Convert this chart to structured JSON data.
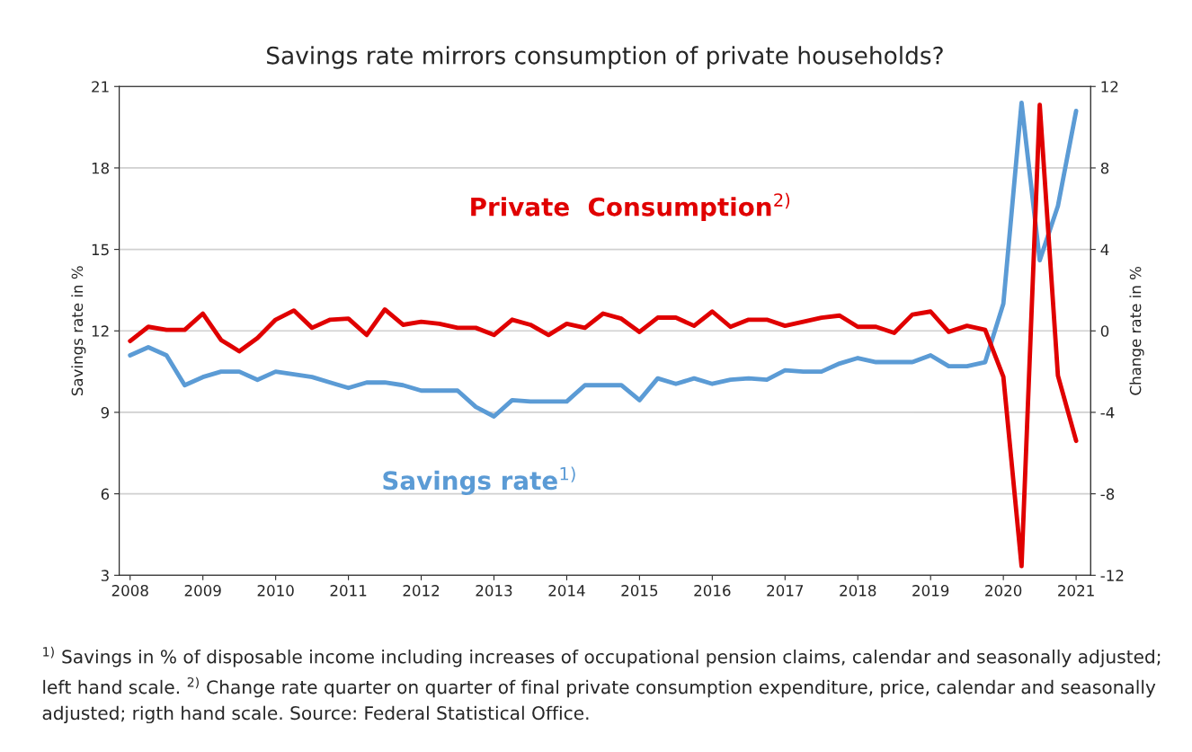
{
  "chart_data": {
    "type": "line",
    "title": "Savings rate mirrors consumption of private households?",
    "ylabel": "Savings rate in %",
    "y2label": "Change rate in %",
    "x": [
      2008,
      2008.25,
      2008.5,
      2008.75,
      2009,
      2009.25,
      2009.5,
      2009.75,
      2010,
      2010.25,
      2010.5,
      2010.75,
      2011,
      2011.25,
      2011.5,
      2011.75,
      2012,
      2012.25,
      2012.5,
      2012.75,
      2013,
      2013.25,
      2013.5,
      2013.75,
      2014,
      2014.25,
      2014.5,
      2014.75,
      2015,
      2015.25,
      2015.5,
      2015.75,
      2016,
      2016.25,
      2016.5,
      2016.75,
      2017,
      2017.25,
      2017.5,
      2017.75,
      2018,
      2018.25,
      2018.5,
      2018.75,
      2019,
      2019.25,
      2019.5,
      2019.75,
      2020,
      2020.25,
      2020.5,
      2020.75,
      2021
    ],
    "series": [
      {
        "name": "Savings rate$^{1)}$",
        "color": "#5b9bd5",
        "axis": "y",
        "values": [
          11.1,
          11.4,
          11.1,
          10.0,
          10.3,
          10.5,
          10.5,
          10.2,
          10.5,
          10.4,
          10.3,
          10.1,
          9.9,
          10.1,
          10.1,
          10.0,
          9.8,
          9.8,
          9.8,
          9.2,
          8.85,
          9.45,
          9.4,
          9.4,
          9.4,
          10.0,
          10.0,
          10.0,
          9.45,
          10.25,
          10.05,
          10.25,
          10.05,
          10.2,
          10.25,
          10.2,
          10.55,
          10.5,
          10.5,
          10.8,
          11.0,
          10.85,
          10.85,
          10.85,
          11.1,
          10.7,
          10.7,
          10.85,
          13.0,
          20.4,
          14.6,
          16.6,
          20.1
        ]
      },
      {
        "name": "Private  Consumption$^{2)}$",
        "color": "#e00000",
        "axis": "y2",
        "values": [
          -0.5,
          0.2,
          0.05,
          0.05,
          0.85,
          -0.45,
          -1.0,
          -0.35,
          0.55,
          1.0,
          0.15,
          0.55,
          0.6,
          -0.2,
          1.05,
          0.3,
          0.45,
          0.35,
          0.15,
          0.15,
          -0.2,
          0.55,
          0.3,
          -0.2,
          0.35,
          0.15,
          0.85,
          0.6,
          -0.05,
          0.65,
          0.65,
          0.25,
          0.95,
          0.2,
          0.55,
          0.55,
          0.25,
          0.45,
          0.65,
          0.75,
          0.2,
          0.2,
          -0.1,
          0.8,
          0.95,
          -0.05,
          0.25,
          0.05,
          -2.25,
          -11.55,
          11.1,
          -2.2,
          -5.4
        ]
      }
    ],
    "xlim": [
      2007.85,
      2021.2
    ],
    "xticks": [
      2008,
      2009,
      2010,
      2011,
      2012,
      2013,
      2014,
      2015,
      2016,
      2017,
      2018,
      2019,
      2020,
      2021
    ],
    "ylim": [
      3,
      21
    ],
    "yticks": [
      3,
      6,
      9,
      12,
      15,
      18,
      21
    ],
    "y2lim": [
      -12,
      12
    ],
    "y2ticks": [
      -12,
      -8,
      -4,
      0,
      4,
      8,
      12
    ],
    "grid": "y",
    "legend": false,
    "line_style": "solid",
    "marker": "none",
    "annotations": [
      "$^{1)}$ Savings in % of disposable income including increases of occupational pension claims, calendar and seasonally adjusted; left hand scale. $^{2)}$ Change rate quarter on quarter of final private consumption expenditure, price, calendar and seasonally adjusted; rigth hand scale. Source: Federal Statistical Office."
    ]
  }
}
